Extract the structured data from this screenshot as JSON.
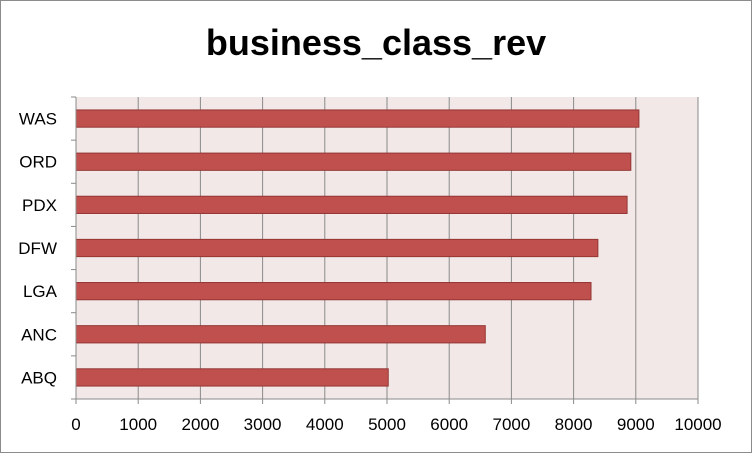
{
  "chart_data": {
    "type": "bar",
    "orientation": "horizontal",
    "title": "business_class_rev",
    "categories": [
      "WAS",
      "ORD",
      "PDX",
      "DFW",
      "LGA",
      "ANC",
      "ABQ"
    ],
    "values": [
      9050,
      8920,
      8860,
      8390,
      8280,
      6580,
      5020
    ],
    "xlim": [
      0,
      10000
    ],
    "xticks": [
      0,
      1000,
      2000,
      3000,
      4000,
      5000,
      6000,
      7000,
      8000,
      9000,
      10000
    ],
    "xlabel": "",
    "ylabel": "",
    "grid": "vertical",
    "legend": "none",
    "colors": {
      "bar_fill": "#c0504d",
      "bar_stroke": "#943634",
      "plot_background": "#f2e8e8",
      "gridline": "#8a8a8a"
    }
  }
}
